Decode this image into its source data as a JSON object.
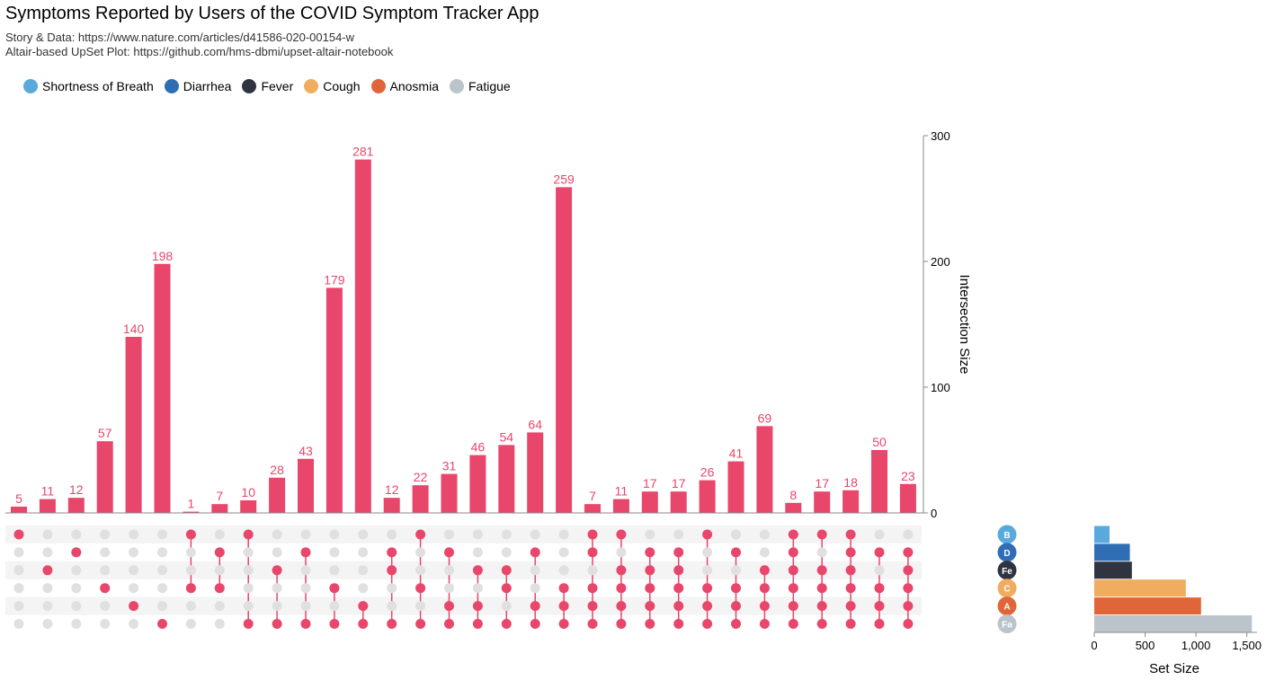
{
  "title": "Symptoms Reported by Users of the COVID Symptom Tracker App",
  "subtitle_1": "Story & Data: https://www.nature.com/articles/d41586-020-00154-w",
  "subtitle_2": "Altair-based UpSet Plot: https://github.com/hms-dbmi/upset-altair-notebook",
  "legend": [
    {
      "label": "Shortness of Breath",
      "color": "#5aa9dd"
    },
    {
      "label": "Diarrhea",
      "color": "#2f6eb5"
    },
    {
      "label": "Fever",
      "color": "#2f3440"
    },
    {
      "label": "Cough",
      "color": "#f0ad60"
    },
    {
      "label": "Anosmia",
      "color": "#e0663a"
    },
    {
      "label": "Fatigue",
      "color": "#bcc4cb"
    }
  ],
  "chart_data": {
    "type": "bar",
    "ylabel": "Intersection Size",
    "ylim": [
      0,
      300
    ],
    "yticks": [
      "0",
      "100",
      "200",
      "300"
    ],
    "bar_color": "#e8466a",
    "values": [
      5,
      11,
      12,
      57,
      140,
      198,
      1,
      7,
      10,
      28,
      43,
      179,
      281,
      12,
      22,
      31,
      46,
      54,
      64,
      259,
      7,
      11,
      17,
      17,
      26,
      41,
      69,
      8,
      17,
      18,
      50,
      23
    ],
    "sets": [
      "Shortness of Breath",
      "Diarrhea",
      "Fever",
      "Cough",
      "Anosmia",
      "Fatigue"
    ],
    "set_abbr": [
      "B",
      "D",
      "Fe",
      "C",
      "A",
      "Fa"
    ],
    "memberships": [
      [
        0
      ],
      [
        2
      ],
      [
        1
      ],
      [
        3
      ],
      [
        4
      ],
      [
        5
      ],
      [
        0,
        3
      ],
      [
        1,
        3
      ],
      [
        0,
        5
      ],
      [
        2,
        5
      ],
      [
        1,
        5
      ],
      [
        3,
        5
      ],
      [
        4,
        5
      ],
      [
        1,
        2,
        5
      ],
      [
        0,
        3,
        5
      ],
      [
        1,
        4,
        5
      ],
      [
        2,
        4,
        5
      ],
      [
        2,
        3,
        5
      ],
      [
        1,
        4,
        5
      ],
      [
        3,
        4,
        5
      ],
      [
        0,
        1,
        3,
        4,
        5
      ],
      [
        0,
        2,
        3,
        4,
        5
      ],
      [
        1,
        2,
        3,
        4,
        5
      ],
      [
        1,
        2,
        3,
        4,
        5
      ],
      [
        0,
        3,
        4,
        5
      ],
      [
        1,
        3,
        4,
        5
      ],
      [
        2,
        3,
        4,
        5
      ],
      [
        0,
        1,
        2,
        3,
        4,
        5
      ],
      [
        0,
        2,
        3,
        4,
        5
      ],
      [
        0,
        1,
        2,
        3,
        4,
        5
      ],
      [
        1,
        3,
        4,
        5
      ],
      [
        1,
        2,
        3,
        4,
        5
      ]
    ],
    "set_sizes": [
      150,
      350,
      370,
      900,
      1050,
      1550
    ],
    "set_size_label": "Set Size",
    "set_size_ticks": [
      "0",
      "500",
      "1,000",
      "1,500"
    ],
    "set_size_max": 1600
  }
}
